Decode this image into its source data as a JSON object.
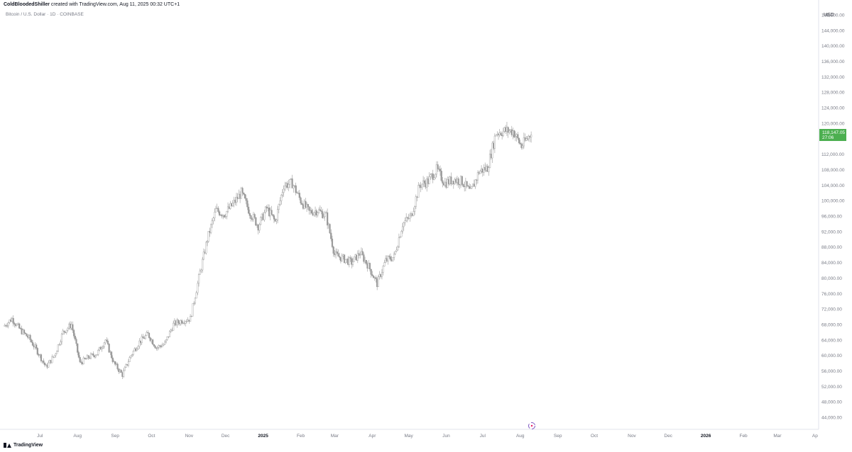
{
  "header": {
    "author": "ColdBloodedShiller",
    "created_text": "created with TradingView.com, Aug 11, 2025 00:32 UTC+1"
  },
  "symbol_line": "Bitcoin / U.S. Dollar · 1D · COINBASE",
  "footer": {
    "brand": "TradingView"
  },
  "chart_data": {
    "type": "candlestick",
    "currency_label": "USD",
    "price_axis_ticks": [
      "148,000.00",
      "144,000.00",
      "140,000.00",
      "136,000.00",
      "132,000.00",
      "128,000.00",
      "124,000.00",
      "120,000.00",
      "116,000.00",
      "112,000.00",
      "108,000.00",
      "104,000.00",
      "100,000.00",
      "96,000.00",
      "92,000.00",
      "88,000.00",
      "84,000.00",
      "80,000.00",
      "76,000.00",
      "72,000.00",
      "68,000.00",
      "64,000.00",
      "60,000.00",
      "56,000.00",
      "52,000.00",
      "48,000.00",
      "44,000.00"
    ],
    "time_axis_ticks": [
      {
        "label": "Jul",
        "date": "2024-07-01",
        "bold": false
      },
      {
        "label": "Aug",
        "date": "2024-08-01",
        "bold": false
      },
      {
        "label": "Sep",
        "date": "2024-09-01",
        "bold": false
      },
      {
        "label": "Oct",
        "date": "2024-10-01",
        "bold": false
      },
      {
        "label": "Nov",
        "date": "2024-11-01",
        "bold": false
      },
      {
        "label": "Dec",
        "date": "2024-12-01",
        "bold": false
      },
      {
        "label": "2025",
        "date": "2025-01-01",
        "bold": true
      },
      {
        "label": "Feb",
        "date": "2025-02-01",
        "bold": false
      },
      {
        "label": "Mar",
        "date": "2025-03-01",
        "bold": false
      },
      {
        "label": "Apr",
        "date": "2025-04-01",
        "bold": false
      },
      {
        "label": "May",
        "date": "2025-05-01",
        "bold": false
      },
      {
        "label": "Jun",
        "date": "2025-06-01",
        "bold": false
      },
      {
        "label": "Jul",
        "date": "2025-07-01",
        "bold": false
      },
      {
        "label": "Aug",
        "date": "2025-08-01",
        "bold": false
      },
      {
        "label": "Sep",
        "date": "2025-09-01",
        "bold": false
      },
      {
        "label": "Oct",
        "date": "2025-10-01",
        "bold": false
      },
      {
        "label": "Nov",
        "date": "2025-11-01",
        "bold": false
      },
      {
        "label": "Dec",
        "date": "2025-12-01",
        "bold": false
      },
      {
        "label": "2026",
        "date": "2026-01-01",
        "bold": true
      },
      {
        "label": "Feb",
        "date": "2026-02-01",
        "bold": false
      },
      {
        "label": "Mar",
        "date": "2026-03-01",
        "bold": false
      },
      {
        "label": "Ap",
        "date": "2026-04-01",
        "bold": false
      }
    ],
    "ylim": [
      42000,
      150000
    ],
    "xlim": [
      "2024-06-01",
      "2026-04-04"
    ],
    "close_series": [
      [
        "2024-06-01",
        67500
      ],
      [
        "2024-06-08",
        69500
      ],
      [
        "2024-06-15",
        66500
      ],
      [
        "2024-06-22",
        64500
      ],
      [
        "2024-06-29",
        61000
      ],
      [
        "2024-07-06",
        57000
      ],
      [
        "2024-07-13",
        60000
      ],
      [
        "2024-07-20",
        66000
      ],
      [
        "2024-07-27",
        68000
      ],
      [
        "2024-08-03",
        58000
      ],
      [
        "2024-08-10",
        59500
      ],
      [
        "2024-08-17",
        60500
      ],
      [
        "2024-08-24",
        64000
      ],
      [
        "2024-08-31",
        58000
      ],
      [
        "2024-09-07",
        55000
      ],
      [
        "2024-09-14",
        60000
      ],
      [
        "2024-09-21",
        63500
      ],
      [
        "2024-09-28",
        65500
      ],
      [
        "2024-10-05",
        62000
      ],
      [
        "2024-10-12",
        63000
      ],
      [
        "2024-10-19",
        68000
      ],
      [
        "2024-10-26",
        69000
      ],
      [
        "2024-11-02",
        69500
      ],
      [
        "2024-11-09",
        80000
      ],
      [
        "2024-11-16",
        90000
      ],
      [
        "2024-11-23",
        97500
      ],
      [
        "2024-11-30",
        96500
      ],
      [
        "2024-12-07",
        99000
      ],
      [
        "2024-12-14",
        102000
      ],
      [
        "2024-12-21",
        97000
      ],
      [
        "2024-12-28",
        93500
      ],
      [
        "2025-01-04",
        98000
      ],
      [
        "2025-01-11",
        94500
      ],
      [
        "2025-01-18",
        104000
      ],
      [
        "2025-01-25",
        104500
      ],
      [
        "2025-02-01",
        100000
      ],
      [
        "2025-02-08",
        97000
      ],
      [
        "2025-02-15",
        97500
      ],
      [
        "2025-02-22",
        96000
      ],
      [
        "2025-03-01",
        86000
      ],
      [
        "2025-03-08",
        85000
      ],
      [
        "2025-03-15",
        84000
      ],
      [
        "2025-03-22",
        86500
      ],
      [
        "2025-03-29",
        83000
      ],
      [
        "2025-04-05",
        78500
      ],
      [
        "2025-04-12",
        84500
      ],
      [
        "2025-04-19",
        85500
      ],
      [
        "2025-04-26",
        94000
      ],
      [
        "2025-05-03",
        96000
      ],
      [
        "2025-05-10",
        104000
      ],
      [
        "2025-05-17",
        105000
      ],
      [
        "2025-05-24",
        108000
      ],
      [
        "2025-05-31",
        104500
      ],
      [
        "2025-06-07",
        105500
      ],
      [
        "2025-06-14",
        105000
      ],
      [
        "2025-06-21",
        102000
      ],
      [
        "2025-06-28",
        107500
      ],
      [
        "2025-07-05",
        108500
      ],
      [
        "2025-07-12",
        117500
      ],
      [
        "2025-07-19",
        118000
      ],
      [
        "2025-07-26",
        118000
      ],
      [
        "2025-08-02",
        114000
      ],
      [
        "2025-08-09",
        117000
      ],
      [
        "2025-08-10",
        118147
      ]
    ],
    "current_price_label": {
      "price": "118,147.05",
      "countdown": "27:06",
      "color": "#4caf50"
    },
    "candle_color": "#999999",
    "grid": false
  }
}
